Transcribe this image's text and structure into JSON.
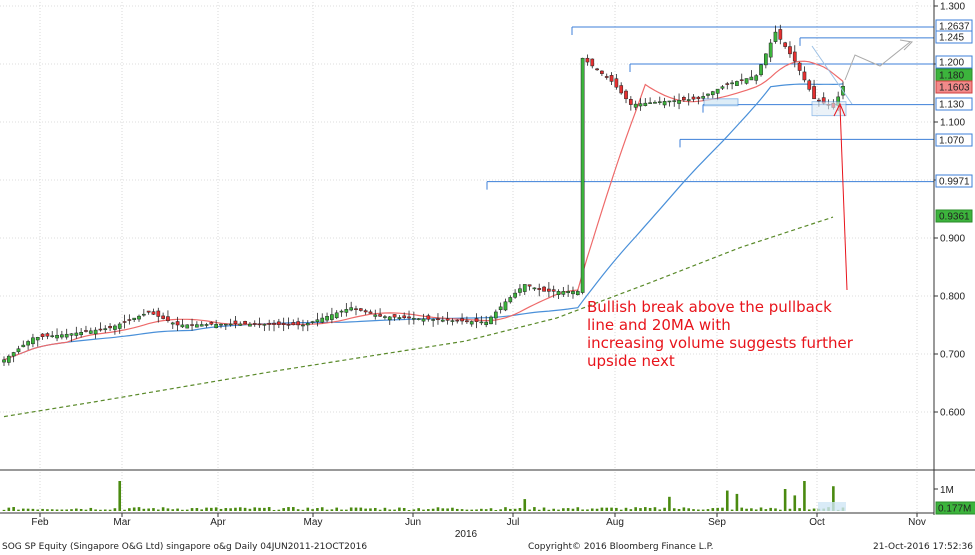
{
  "chart_data": {
    "type": "candlestick",
    "title": "",
    "ticker_line": "SOG SP Equity (Singapore O&G Ltd) singapore o&g  Daily 04JUN2011-21OCT2016",
    "copyright": "Copyright© 2016 Bloomberg Finance L.P.",
    "timestamp": "21-Oct-2016 17:52:36",
    "year_label": "2016",
    "months": [
      "Feb",
      "Mar",
      "Apr",
      "May",
      "Jun",
      "Jul",
      "Aug",
      "Sep",
      "Oct",
      "Nov"
    ],
    "y_ticks": [
      "1.300",
      "1.200",
      "1.100",
      "1.000",
      "0.900",
      "0.800",
      "0.700",
      "0.600"
    ],
    "y_tick_values": [
      1.3,
      1.2,
      1.1,
      1.0,
      0.9,
      0.8,
      0.7,
      0.6
    ],
    "ylim": [
      0.55,
      1.305
    ],
    "volume_ticks": [
      "1M"
    ],
    "volume_last": "0.177M",
    "price_badges": [
      {
        "label": "1.2637",
        "value": 1.2637,
        "style": "outline"
      },
      {
        "label": "1.245",
        "value": 1.245,
        "style": "outline"
      },
      {
        "label": "1.200",
        "value": 1.2,
        "style": "outline"
      },
      {
        "label": "1.180",
        "value": 1.18,
        "style": "green"
      },
      {
        "label": "1.1603",
        "value": 1.1603,
        "style": "red"
      },
      {
        "label": "1.130",
        "value": 1.13,
        "style": "outline"
      },
      {
        "label": "1.070",
        "value": 1.07,
        "style": "outline"
      },
      {
        "label": "0.9971",
        "value": 0.9971,
        "style": "outline"
      },
      {
        "label": "0.9361",
        "value": 0.9361,
        "style": "green"
      }
    ],
    "horizontal_lines": [
      1.2637,
      1.245,
      1.2,
      1.13,
      1.07,
      0.9971
    ],
    "series": [
      {
        "name": "20MA",
        "color": "#ee6a6a"
      },
      {
        "name": "50MA",
        "color": "#4a90d9"
      },
      {
        "name": "200MA",
        "color": "#5a8a2a"
      }
    ],
    "ma200_values": [
      0.592,
      0.618,
      0.645,
      0.672,
      0.697,
      0.722,
      0.762,
      0.822,
      0.884,
      0.936
    ],
    "colors": {
      "up": "#3cb43c",
      "down": "#e53030",
      "hline": "#3c7fd8",
      "annotation": "#e8141b"
    }
  },
  "annotation": {
    "lines": [
      "Bullish break above the pullback",
      "line and 20MA with",
      "increasing volume suggests further",
      "upside next"
    ]
  }
}
